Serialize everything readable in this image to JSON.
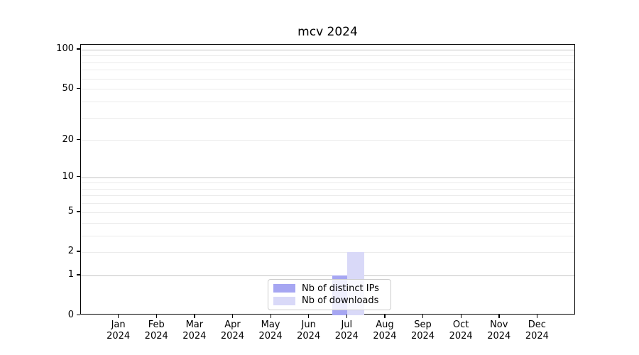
{
  "title": "mcv 2024",
  "chart_data": {
    "type": "bar",
    "title": "mcv 2024",
    "y_scale": "log1p",
    "ylim": [
      0,
      109
    ],
    "categories": [
      "Jan",
      "Feb",
      "Mar",
      "Apr",
      "May",
      "Jun",
      "Jul",
      "Aug",
      "Sep",
      "Oct",
      "Nov",
      "Dec"
    ],
    "category_year": "2024",
    "series": [
      {
        "name": "Nb of distinct IPs",
        "color": "#a6a6f2",
        "values": [
          0,
          0,
          0,
          0,
          0,
          0,
          1,
          0,
          0,
          0,
          0,
          0
        ]
      },
      {
        "name": "Nb of downloads",
        "color": "#d9d9f8",
        "values": [
          0,
          0,
          0,
          0,
          0,
          0,
          2,
          0,
          0,
          0,
          0,
          0
        ]
      }
    ],
    "y_major_ticks": [
      0,
      1,
      2,
      5,
      10,
      20,
      50,
      100
    ],
    "y_decade_gridlines": [
      1,
      10,
      100
    ],
    "y_minor_gridlines": [
      3,
      4,
      6,
      7,
      8,
      9,
      30,
      40,
      60,
      70,
      80,
      90
    ],
    "grid": {
      "horizontal": true,
      "vertical": false
    },
    "legend": {
      "location": "lower center"
    }
  },
  "style": {
    "background": "#ffffff",
    "spine_color": "#000000",
    "major_grid_color": "#c3c3c3",
    "minor_grid_color": "#ebebeb",
    "text_color": "#000000"
  }
}
